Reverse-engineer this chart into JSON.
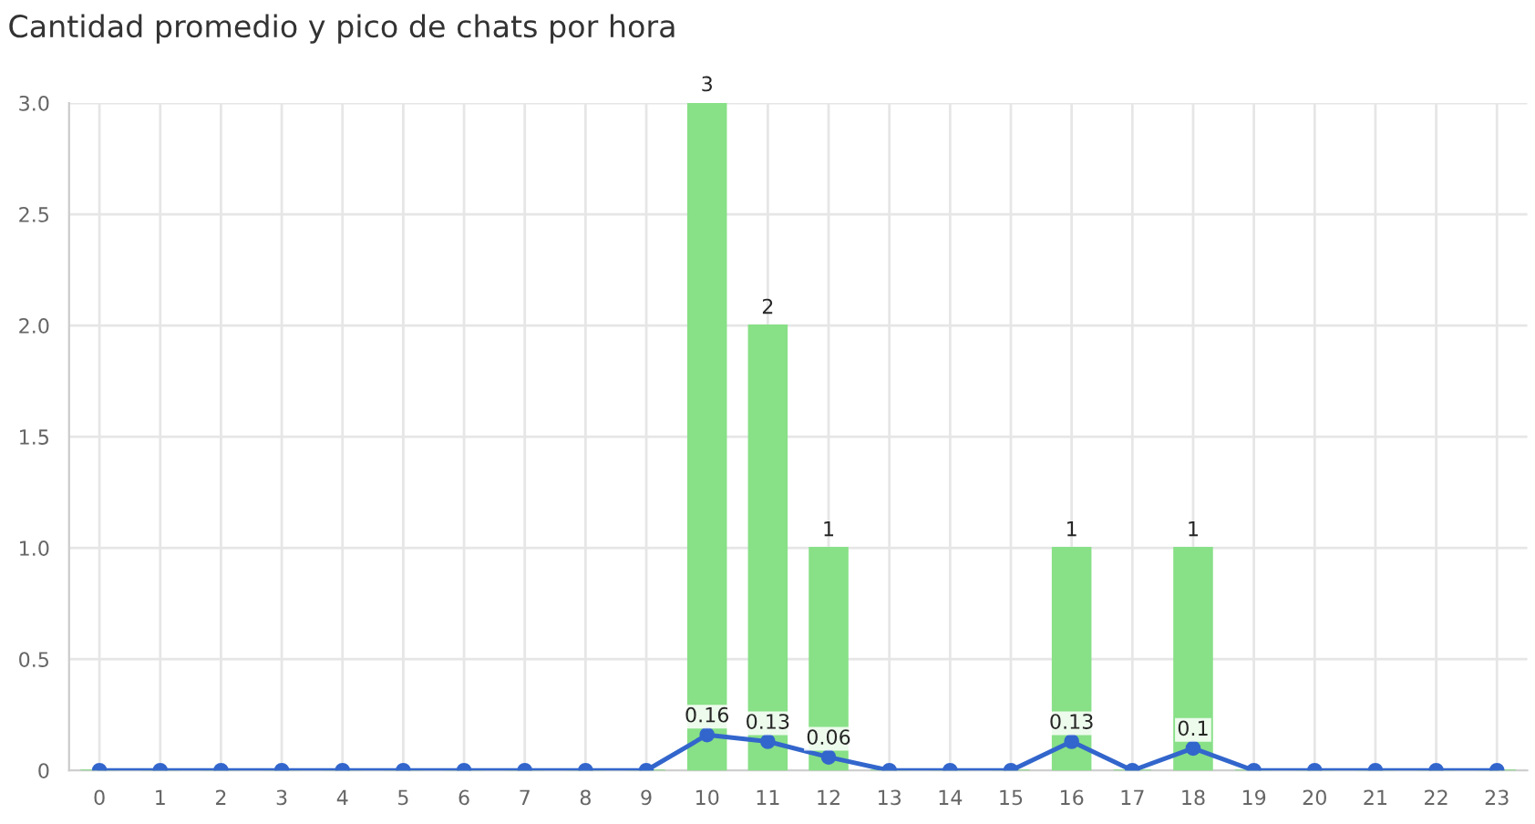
{
  "chart_data": {
    "type": "bar",
    "title": "Cantidad promedio y pico de chats por hora",
    "categories": [
      "0",
      "1",
      "2",
      "3",
      "4",
      "5",
      "6",
      "7",
      "8",
      "9",
      "10",
      "11",
      "12",
      "13",
      "14",
      "15",
      "16",
      "17",
      "18",
      "19",
      "20",
      "21",
      "22",
      "23"
    ],
    "series": [
      {
        "color": "#88e087",
        "values": [
          0,
          0,
          0,
          0,
          0,
          0,
          0,
          0,
          0,
          0,
          3,
          2,
          1,
          0,
          0,
          0,
          1,
          0,
          1,
          0,
          0,
          0,
          0,
          0
        ],
        "value_labels": [
          null,
          null,
          null,
          null,
          null,
          null,
          null,
          null,
          null,
          null,
          "3",
          "2",
          "1",
          null,
          null,
          null,
          "1",
          null,
          "1",
          null,
          null,
          null,
          null,
          null
        ]
      },
      {
        "type": "line",
        "color": "#3366cc",
        "marker": "circle",
        "values": [
          0,
          0,
          0,
          0,
          0,
          0,
          0,
          0,
          0,
          0,
          0.16,
          0.13,
          0.06,
          0,
          0,
          0,
          0.13,
          0,
          0.1,
          0,
          0,
          0,
          0,
          0
        ],
        "value_labels": [
          null,
          null,
          null,
          null,
          null,
          null,
          null,
          null,
          null,
          null,
          "0.16",
          "0.13",
          "0.06",
          null,
          null,
          null,
          "0.13",
          null,
          "0.1",
          null,
          null,
          null,
          null,
          null
        ]
      }
    ],
    "ylim": [
      0,
      3
    ],
    "yticks": [
      0,
      0.5,
      {
        "value": 1,
        "label": "1.0"
      },
      1.5,
      {
        "value": 2,
        "label": "2.0"
      },
      2.5,
      {
        "value": 3,
        "label": "3.0"
      }
    ],
    "grid": true
  }
}
